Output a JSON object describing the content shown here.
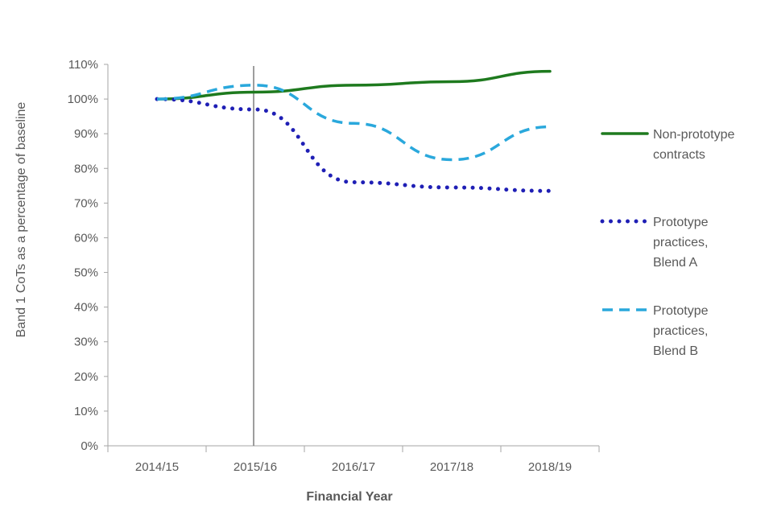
{
  "chart_data": {
    "type": "line",
    "title": "",
    "xlabel": "Financial Year",
    "ylabel": "Band 1 CoTs as a percentage of baseline",
    "categories": [
      "2014/15",
      "2015/16",
      "2016/17",
      "2017/18",
      "2018/19"
    ],
    "ylim": [
      0,
      110
    ],
    "yticks": [
      0,
      10,
      20,
      30,
      40,
      50,
      60,
      70,
      80,
      90,
      100,
      110
    ],
    "ytick_labels": [
      "0%",
      "10%",
      "20%",
      "30%",
      "40%",
      "50%",
      "60%",
      "70%",
      "80%",
      "90%",
      "100%",
      "110%"
    ],
    "grid": false,
    "legend_position": "right",
    "reference_line": {
      "category": "2015/16"
    },
    "series": [
      {
        "name": "Non-prototype contracts",
        "legend_lines": [
          "Non-prototype",
          "contracts"
        ],
        "style": "solid",
        "color": "#1e7a1e",
        "values": [
          100,
          102,
          104,
          105,
          108
        ]
      },
      {
        "name": "Prototype practices, Blend A",
        "legend_lines": [
          "Prototype",
          "practices,",
          "Blend A"
        ],
        "style": "dotted",
        "color": "#1f1fb5",
        "values": [
          100,
          97,
          76,
          74.5,
          73.5
        ]
      },
      {
        "name": "Prototype practices, Blend B",
        "legend_lines": [
          "Prototype",
          "practices,",
          "Blend B"
        ],
        "style": "dashed",
        "color": "#2aa8dc",
        "values": [
          100,
          104,
          93,
          82.5,
          92
        ]
      }
    ]
  },
  "colors": {
    "axis": "#a6a6a6",
    "reference_line": "#7f7f7f",
    "text": "#595959"
  }
}
